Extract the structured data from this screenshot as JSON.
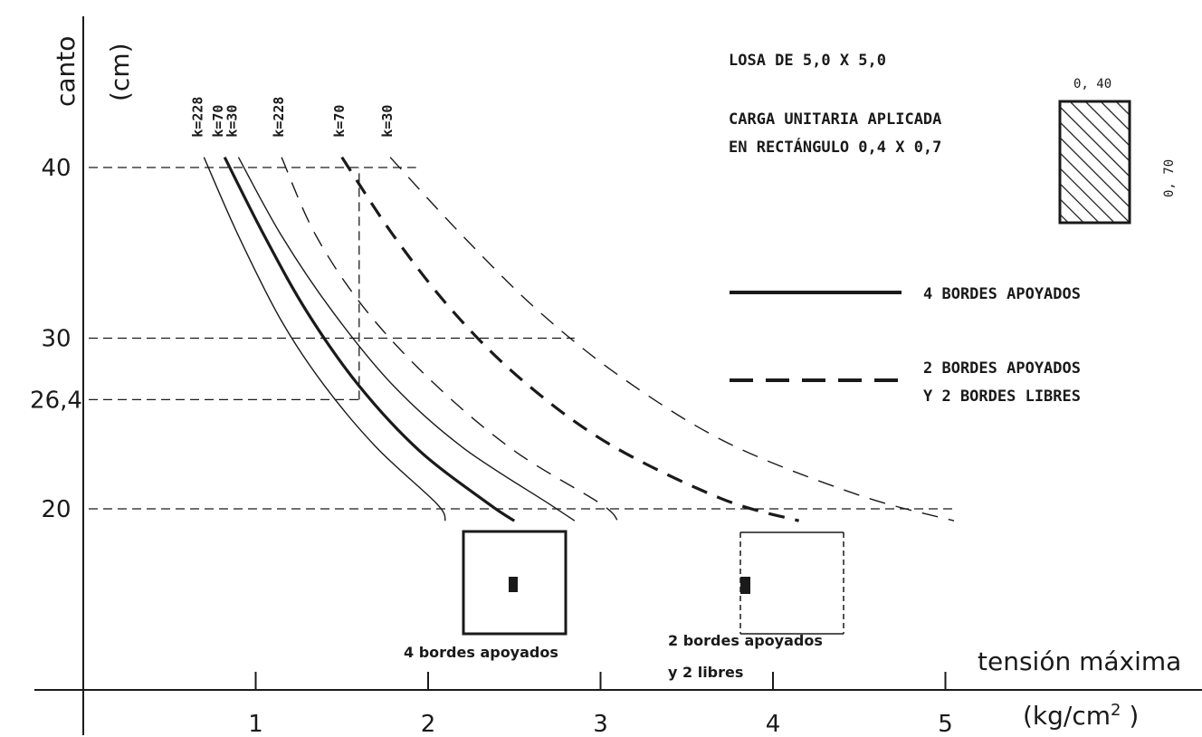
{
  "chart_data": {
    "type": "line",
    "xlabel_line1": "tensión máxima",
    "xlabel_line2_base": "(kg/cm",
    "xlabel_line2_sup": "2",
    "xlabel_line2_end": " )",
    "ylabel_word": "canto",
    "ylabel_unit": "(cm)",
    "xlim": [
      0,
      5.2
    ],
    "ylim": [
      0,
      46
    ],
    "x_ticks": [
      {
        "value": 1,
        "label": "1"
      },
      {
        "value": 2,
        "label": "2"
      },
      {
        "value": 3,
        "label": "3"
      },
      {
        "value": 4,
        "label": "4"
      },
      {
        "value": 5,
        "label": "5"
      }
    ],
    "y_ticks": [
      {
        "value": 20,
        "label": "20"
      },
      {
        "value": 26.4,
        "label": "26,4"
      },
      {
        "value": 30,
        "label": "30"
      },
      {
        "value": 40,
        "label": "40"
      }
    ],
    "series": [
      {
        "label": "k=228",
        "style": "solid-thin",
        "points": [
          [
            0.7,
            40.6
          ],
          [
            0.9,
            36
          ],
          [
            1.15,
            31
          ],
          [
            1.4,
            27.2
          ],
          [
            1.7,
            23.6
          ],
          [
            2.05,
            20.3
          ],
          [
            2.1,
            19.3
          ]
        ]
      },
      {
        "label": "k=70",
        "style": "solid-thick",
        "points": [
          [
            0.82,
            40.6
          ],
          [
            1.05,
            36
          ],
          [
            1.3,
            31.5
          ],
          [
            1.6,
            27.2
          ],
          [
            1.95,
            23.4
          ],
          [
            2.35,
            20.3
          ],
          [
            2.5,
            19.3
          ]
        ]
      },
      {
        "label": "k=30",
        "style": "solid-thin",
        "points": [
          [
            0.9,
            40.6
          ],
          [
            1.15,
            36
          ],
          [
            1.45,
            31.5
          ],
          [
            1.8,
            27.2
          ],
          [
            2.2,
            23.6
          ],
          [
            2.7,
            20.3
          ],
          [
            2.85,
            19.3
          ]
        ]
      },
      {
        "label": "k=228",
        "style": "dashed-thin",
        "points": [
          [
            1.15,
            40.6
          ],
          [
            1.35,
            36
          ],
          [
            1.65,
            31.5
          ],
          [
            2.05,
            27.2
          ],
          [
            2.5,
            23.4
          ],
          [
            3.0,
            20.3
          ],
          [
            3.1,
            19.3
          ]
        ]
      },
      {
        "label": "k=70",
        "style": "dashed-thick",
        "points": [
          [
            1.5,
            40.6
          ],
          [
            1.8,
            36
          ],
          [
            2.15,
            31.5
          ],
          [
            2.55,
            27.5
          ],
          [
            3.05,
            23.8
          ],
          [
            3.7,
            20.6
          ],
          [
            4.15,
            19.3
          ]
        ]
      },
      {
        "label": "k=30",
        "style": "dashed-thin",
        "points": [
          [
            1.78,
            40.6
          ],
          [
            2.2,
            36
          ],
          [
            2.65,
            31.5
          ],
          [
            3.15,
            27.5
          ],
          [
            3.75,
            23.8
          ],
          [
            4.5,
            20.8
          ],
          [
            5.05,
            19.3
          ]
        ]
      }
    ],
    "reference_lines": [
      {
        "y": 40,
        "x_to": 1.93
      },
      {
        "y": 30,
        "x_to": 2.85
      },
      {
        "y": 26.4,
        "x_to": 1.6
      },
      {
        "y": 20,
        "x_to": 5.05
      }
    ],
    "vertical_guide": {
      "x": 1.6,
      "y_from": 26.4,
      "y_to": 40
    }
  },
  "notes": {
    "line1": "LOSA DE 5,0 X 5,0",
    "line2": "CARGA UNITARIA APLICADA",
    "line3": "EN RECTÁNGULO 0,4 X 0,7",
    "rect_width_label": "0, 40",
    "rect_height_label": "0, 70"
  },
  "legend": {
    "solid_label": "4 BORDES APOYADOS",
    "dashed_label_line1": "2 BORDES APOYADOS",
    "dashed_label_line2": "Y 2 BORDES LIBRES"
  },
  "diagrams": {
    "four_edges_caption": "4 bordes apoyados",
    "two_edges_caption_line1": "2 bordes apoyados",
    "two_edges_caption_line2": "y 2 libres"
  }
}
